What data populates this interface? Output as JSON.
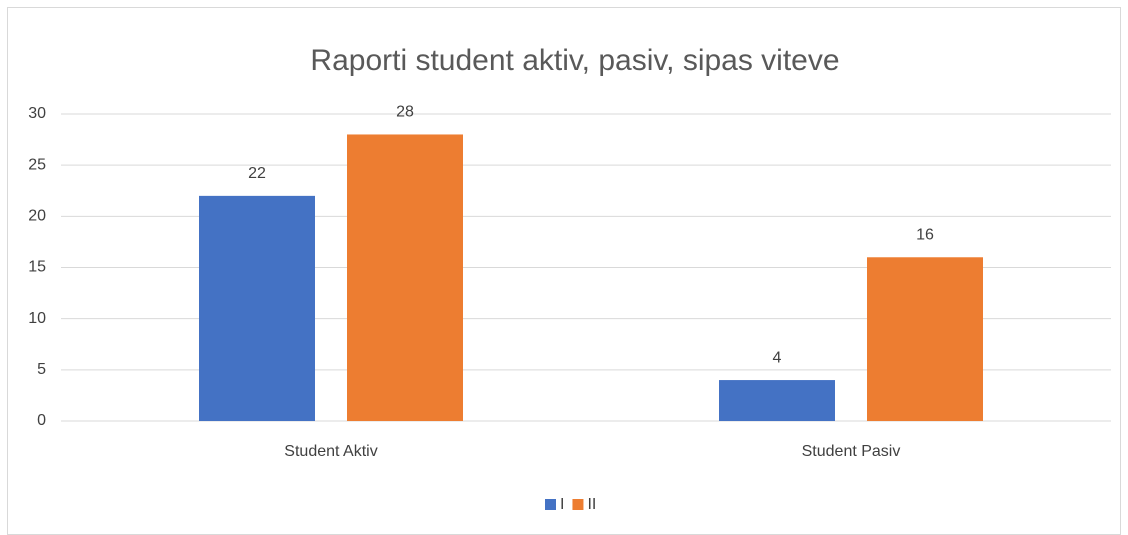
{
  "chart_data": {
    "type": "bar",
    "title": "Raporti student aktiv, pasiv, sipas viteve",
    "categories": [
      "Student Aktiv",
      "Student Pasiv"
    ],
    "series": [
      {
        "name": "I",
        "color": "#4472c4",
        "values": [
          22,
          4
        ]
      },
      {
        "name": "II",
        "color": "#ed7d31",
        "values": [
          28,
          16
        ]
      }
    ],
    "ylim": [
      0,
      30
    ],
    "yticks": [
      0,
      5,
      10,
      15,
      20,
      25,
      30
    ],
    "grid": true,
    "legend": "bottom"
  }
}
